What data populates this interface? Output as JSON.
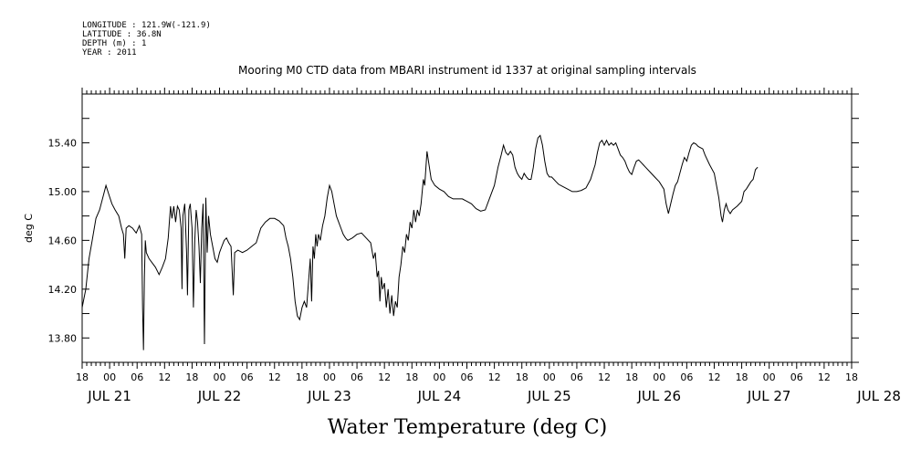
{
  "header": {
    "lines": [
      "LONGITUDE : 121.9W(-121.9)",
      "LATITUDE : 36.8N",
      "DEPTH (m) : 1",
      "YEAR : 2011"
    ]
  },
  "chart_data": {
    "type": "line",
    "title": "Mooring M0 CTD data from MBARI instrument id 1337 at original sampling intervals",
    "xlabel": "Water Temperature (deg C)",
    "ylabel": "deg C",
    "ylim": [
      13.6,
      15.8
    ],
    "yticks": [
      13.8,
      14.2,
      14.6,
      15.0,
      15.4
    ],
    "ytick_labels": [
      "13.80",
      "14.20",
      "14.60",
      "15.00",
      "15.40"
    ],
    "xlim_hours": [
      0,
      168
    ],
    "xticks": [
      {
        "h": 0,
        "label": "18"
      },
      {
        "h": 6,
        "label": "00"
      },
      {
        "h": 12,
        "label": "06"
      },
      {
        "h": 18,
        "label": "12"
      },
      {
        "h": 24,
        "label": "18"
      },
      {
        "h": 30,
        "label": "00"
      },
      {
        "h": 36,
        "label": "06"
      },
      {
        "h": 42,
        "label": "12"
      },
      {
        "h": 48,
        "label": "18"
      },
      {
        "h": 54,
        "label": "00"
      },
      {
        "h": 60,
        "label": "06"
      },
      {
        "h": 66,
        "label": "12"
      },
      {
        "h": 72,
        "label": "18"
      },
      {
        "h": 78,
        "label": "00"
      },
      {
        "h": 84,
        "label": "06"
      },
      {
        "h": 90,
        "label": "12"
      },
      {
        "h": 96,
        "label": "18"
      },
      {
        "h": 102,
        "label": "00"
      },
      {
        "h": 108,
        "label": "06"
      },
      {
        "h": 114,
        "label": "12"
      },
      {
        "h": 120,
        "label": "18"
      },
      {
        "h": 126,
        "label": "00"
      },
      {
        "h": 132,
        "label": "06"
      },
      {
        "h": 138,
        "label": "12"
      },
      {
        "h": 144,
        "label": "18"
      },
      {
        "h": 150,
        "label": "00"
      },
      {
        "h": 156,
        "label": "06"
      },
      {
        "h": 162,
        "label": "12"
      },
      {
        "h": 168,
        "label": "18"
      }
    ],
    "xday_labels": [
      {
        "h": 6,
        "label": "JUL 21"
      },
      {
        "h": 30,
        "label": "JUL 22"
      },
      {
        "h": 54,
        "label": "JUL 23"
      },
      {
        "h": 78,
        "label": "JUL 24"
      },
      {
        "h": 102,
        "label": "JUL 25"
      },
      {
        "h": 126,
        "label": "JUL 26"
      },
      {
        "h": 150,
        "label": "JUL 27"
      },
      {
        "h": 174,
        "label": "JUL 28"
      }
    ],
    "series": [
      {
        "values": [
          [
            0.0,
            14.05
          ],
          [
            0.8,
            14.2
          ],
          [
            1.5,
            14.45
          ],
          [
            2.2,
            14.6
          ],
          [
            3.0,
            14.78
          ],
          [
            3.8,
            14.85
          ],
          [
            4.5,
            14.95
          ],
          [
            5.2,
            15.05
          ],
          [
            5.8,
            14.98
          ],
          [
            6.5,
            14.9
          ],
          [
            7.2,
            14.85
          ],
          [
            8.0,
            14.8
          ],
          [
            8.6,
            14.7
          ],
          [
            9.0,
            14.65
          ],
          [
            9.3,
            14.45
          ],
          [
            9.6,
            14.7
          ],
          [
            10.2,
            14.72
          ],
          [
            11.0,
            14.7
          ],
          [
            11.8,
            14.66
          ],
          [
            12.5,
            14.72
          ],
          [
            13.0,
            14.65
          ],
          [
            13.2,
            14.05
          ],
          [
            13.4,
            13.7
          ],
          [
            13.6,
            14.3
          ],
          [
            13.8,
            14.6
          ],
          [
            14.0,
            14.5
          ],
          [
            14.6,
            14.45
          ],
          [
            15.2,
            14.42
          ],
          [
            16.0,
            14.38
          ],
          [
            16.8,
            14.32
          ],
          [
            17.5,
            14.38
          ],
          [
            18.2,
            14.45
          ],
          [
            18.8,
            14.62
          ],
          [
            19.3,
            14.88
          ],
          [
            19.6,
            14.78
          ],
          [
            20.0,
            14.88
          ],
          [
            20.4,
            14.75
          ],
          [
            20.8,
            14.88
          ],
          [
            21.2,
            14.85
          ],
          [
            21.6,
            14.7
          ],
          [
            21.8,
            14.2
          ],
          [
            22.0,
            14.8
          ],
          [
            22.4,
            14.9
          ],
          [
            22.8,
            14.5
          ],
          [
            23.0,
            14.15
          ],
          [
            23.3,
            14.85
          ],
          [
            23.6,
            14.9
          ],
          [
            24.0,
            14.7
          ],
          [
            24.3,
            14.05
          ],
          [
            24.6,
            14.6
          ],
          [
            24.9,
            14.85
          ],
          [
            25.2,
            14.75
          ],
          [
            25.5,
            14.55
          ],
          [
            25.8,
            14.25
          ],
          [
            26.1,
            14.7
          ],
          [
            26.4,
            14.9
          ],
          [
            26.7,
            13.75
          ],
          [
            27.0,
            14.95
          ],
          [
            27.3,
            14.5
          ],
          [
            27.6,
            14.8
          ],
          [
            28.0,
            14.65
          ],
          [
            28.5,
            14.55
          ],
          [
            29.0,
            14.45
          ],
          [
            29.5,
            14.42
          ],
          [
            30.0,
            14.5
          ],
          [
            30.5,
            14.55
          ],
          [
            31.0,
            14.6
          ],
          [
            31.5,
            14.62
          ],
          [
            32.0,
            14.58
          ],
          [
            32.5,
            14.55
          ],
          [
            33.0,
            14.15
          ],
          [
            33.3,
            14.5
          ],
          [
            34.0,
            14.52
          ],
          [
            35.0,
            14.5
          ],
          [
            36.0,
            14.52
          ],
          [
            37.0,
            14.55
          ],
          [
            38.0,
            14.58
          ],
          [
            39.0,
            14.7
          ],
          [
            40.0,
            14.75
          ],
          [
            41.0,
            14.78
          ],
          [
            42.0,
            14.78
          ],
          [
            43.0,
            14.76
          ],
          [
            44.0,
            14.72
          ],
          [
            44.5,
            14.62
          ],
          [
            45.0,
            14.55
          ],
          [
            45.5,
            14.45
          ],
          [
            46.0,
            14.3
          ],
          [
            46.5,
            14.1
          ],
          [
            47.0,
            13.98
          ],
          [
            47.5,
            13.95
          ],
          [
            48.0,
            14.05
          ],
          [
            48.5,
            14.1
          ],
          [
            49.0,
            14.05
          ],
          [
            49.5,
            14.3
          ],
          [
            49.8,
            14.45
          ],
          [
            50.1,
            14.1
          ],
          [
            50.4,
            14.55
          ],
          [
            50.7,
            14.45
          ],
          [
            51.0,
            14.65
          ],
          [
            51.3,
            14.55
          ],
          [
            51.6,
            14.65
          ],
          [
            52.0,
            14.6
          ],
          [
            52.5,
            14.72
          ],
          [
            53.0,
            14.8
          ],
          [
            53.5,
            14.95
          ],
          [
            54.0,
            15.05
          ],
          [
            54.5,
            15.0
          ],
          [
            55.0,
            14.9
          ],
          [
            55.5,
            14.8
          ],
          [
            56.0,
            14.75
          ],
          [
            56.5,
            14.7
          ],
          [
            57.0,
            14.65
          ],
          [
            57.5,
            14.62
          ],
          [
            58.0,
            14.6
          ],
          [
            59.0,
            14.62
          ],
          [
            60.0,
            14.65
          ],
          [
            61.0,
            14.66
          ],
          [
            62.0,
            14.62
          ],
          [
            63.0,
            14.58
          ],
          [
            63.6,
            14.45
          ],
          [
            64.0,
            14.5
          ],
          [
            64.4,
            14.3
          ],
          [
            64.7,
            14.35
          ],
          [
            65.0,
            14.1
          ],
          [
            65.3,
            14.3
          ],
          [
            65.6,
            14.2
          ],
          [
            66.0,
            14.25
          ],
          [
            66.4,
            14.05
          ],
          [
            66.8,
            14.2
          ],
          [
            67.2,
            14.0
          ],
          [
            67.6,
            14.15
          ],
          [
            68.0,
            13.98
          ],
          [
            68.4,
            14.1
          ],
          [
            68.8,
            14.05
          ],
          [
            69.2,
            14.3
          ],
          [
            69.6,
            14.4
          ],
          [
            70.0,
            14.55
          ],
          [
            70.4,
            14.5
          ],
          [
            70.8,
            14.65
          ],
          [
            71.2,
            14.6
          ],
          [
            71.6,
            14.75
          ],
          [
            72.0,
            14.7
          ],
          [
            72.4,
            14.85
          ],
          [
            72.8,
            14.75
          ],
          [
            73.2,
            14.85
          ],
          [
            73.6,
            14.8
          ],
          [
            74.0,
            14.9
          ],
          [
            74.5,
            15.1
          ],
          [
            74.8,
            15.05
          ],
          [
            75.3,
            15.33
          ],
          [
            75.8,
            15.2
          ],
          [
            76.2,
            15.1
          ],
          [
            77.0,
            15.05
          ],
          [
            78.0,
            15.02
          ],
          [
            79.0,
            15.0
          ],
          [
            80.0,
            14.96
          ],
          [
            81.0,
            14.94
          ],
          [
            82.0,
            14.94
          ],
          [
            83.0,
            14.94
          ],
          [
            84.0,
            14.92
          ],
          [
            85.0,
            14.9
          ],
          [
            86.0,
            14.86
          ],
          [
            87.0,
            14.84
          ],
          [
            88.0,
            14.85
          ],
          [
            89.0,
            14.95
          ],
          [
            90.0,
            15.05
          ],
          [
            90.8,
            15.2
          ],
          [
            91.5,
            15.3
          ],
          [
            92.0,
            15.38
          ],
          [
            92.5,
            15.32
          ],
          [
            93.0,
            15.3
          ],
          [
            93.5,
            15.33
          ],
          [
            94.0,
            15.3
          ],
          [
            94.5,
            15.2
          ],
          [
            95.0,
            15.15
          ],
          [
            95.5,
            15.12
          ],
          [
            96.0,
            15.1
          ],
          [
            96.5,
            15.15
          ],
          [
            97.0,
            15.12
          ],
          [
            97.5,
            15.1
          ],
          [
            98.0,
            15.1
          ],
          [
            98.5,
            15.2
          ],
          [
            99.0,
            15.35
          ],
          [
            99.5,
            15.44
          ],
          [
            100.0,
            15.46
          ],
          [
            100.5,
            15.38
          ],
          [
            101.0,
            15.25
          ],
          [
            101.5,
            15.15
          ],
          [
            102.0,
            15.12
          ],
          [
            102.5,
            15.12
          ],
          [
            103.0,
            15.1
          ],
          [
            103.5,
            15.08
          ],
          [
            104.0,
            15.06
          ],
          [
            105.0,
            15.04
          ],
          [
            106.0,
            15.02
          ],
          [
            107.0,
            15.0
          ],
          [
            108.0,
            15.0
          ],
          [
            109.0,
            15.01
          ],
          [
            110.0,
            15.03
          ],
          [
            111.0,
            15.1
          ],
          [
            112.0,
            15.22
          ],
          [
            112.5,
            15.32
          ],
          [
            113.0,
            15.4
          ],
          [
            113.5,
            15.42
          ],
          [
            114.0,
            15.38
          ],
          [
            114.5,
            15.42
          ],
          [
            115.0,
            15.38
          ],
          [
            115.5,
            15.4
          ],
          [
            116.0,
            15.38
          ],
          [
            116.5,
            15.4
          ],
          [
            117.0,
            15.35
          ],
          [
            117.5,
            15.3
          ],
          [
            118.0,
            15.28
          ],
          [
            118.5,
            15.25
          ],
          [
            119.0,
            15.2
          ],
          [
            119.5,
            15.16
          ],
          [
            120.0,
            15.14
          ],
          [
            120.5,
            15.2
          ],
          [
            121.0,
            15.25
          ],
          [
            121.5,
            15.26
          ],
          [
            122.0,
            15.24
          ],
          [
            122.5,
            15.22
          ],
          [
            123.0,
            15.2
          ],
          [
            124.0,
            15.16
          ],
          [
            125.0,
            15.12
          ],
          [
            126.0,
            15.08
          ],
          [
            127.0,
            15.02
          ],
          [
            127.5,
            14.9
          ],
          [
            128.0,
            14.82
          ],
          [
            128.5,
            14.9
          ],
          [
            129.0,
            14.98
          ],
          [
            129.5,
            15.05
          ],
          [
            130.0,
            15.08
          ],
          [
            130.5,
            15.15
          ],
          [
            131.0,
            15.22
          ],
          [
            131.5,
            15.28
          ],
          [
            132.0,
            15.25
          ],
          [
            132.5,
            15.32
          ],
          [
            133.0,
            15.38
          ],
          [
            133.5,
            15.4
          ],
          [
            134.0,
            15.39
          ],
          [
            134.5,
            15.37
          ],
          [
            135.0,
            15.36
          ],
          [
            135.5,
            15.35
          ],
          [
            136.0,
            15.3
          ],
          [
            137.0,
            15.22
          ],
          [
            138.0,
            15.15
          ],
          [
            139.0,
            14.95
          ],
          [
            139.5,
            14.8
          ],
          [
            139.8,
            14.75
          ],
          [
            140.2,
            14.85
          ],
          [
            140.6,
            14.9
          ],
          [
            141.0,
            14.85
          ],
          [
            141.5,
            14.82
          ],
          [
            142.0,
            14.85
          ],
          [
            143.0,
            14.88
          ],
          [
            144.0,
            14.92
          ],
          [
            144.5,
            15.0
          ],
          [
            145.0,
            15.02
          ],
          [
            145.5,
            15.05
          ],
          [
            146.0,
            15.08
          ],
          [
            146.5,
            15.1
          ],
          [
            147.0,
            15.18
          ],
          [
            147.5,
            15.2
          ]
        ]
      }
    ]
  }
}
